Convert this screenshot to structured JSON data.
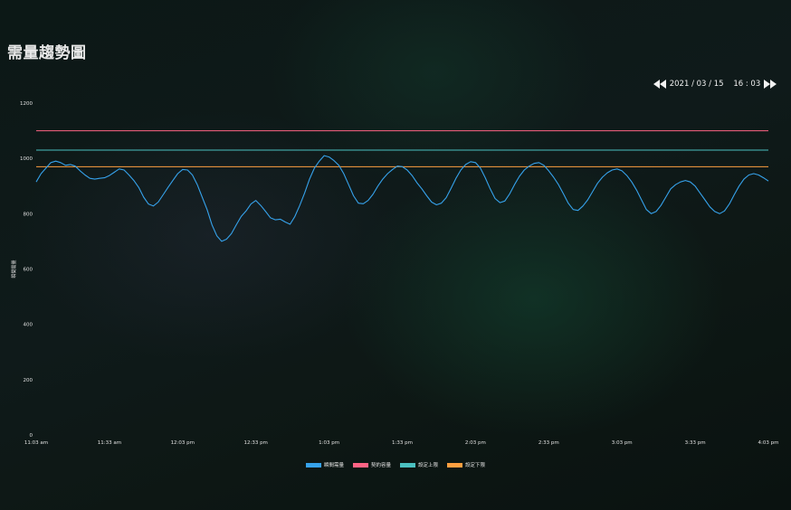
{
  "page": {
    "title": "需量趨勢圖"
  },
  "nav": {
    "date_text": "2021 / 03 / 15    16 : 03",
    "prev_icon": "double-chevron-left-icon",
    "next_icon": "double-chevron-right-icon"
  },
  "chart_data": {
    "type": "line",
    "title": "需量趨勢圖",
    "xlabel": "",
    "ylabel": "瞬間需量",
    "ylim": [
      0,
      1200
    ],
    "yticks": [
      0,
      200,
      400,
      600,
      800,
      1000,
      1200
    ],
    "xlim_minutes": [
      0,
      300
    ],
    "x_tick_labels": [
      "11:03 am",
      "11:33 am",
      "12:03 pm",
      "12:33 pm",
      "1:03 pm",
      "1:33 pm",
      "2:03 pm",
      "2:33 pm",
      "3:03 pm",
      "3:33 pm",
      "4:03 pm"
    ],
    "grid": false,
    "legend_position": "bottom",
    "series": [
      {
        "name": "瞬間需量",
        "color": "#36a2eb",
        "x": [
          0,
          2,
          4,
          6,
          8,
          10,
          12,
          14,
          16,
          18,
          20,
          22,
          24,
          26,
          28,
          30,
          32,
          34,
          36,
          38,
          40,
          42,
          44,
          46,
          48,
          50,
          52,
          54,
          56,
          58,
          60,
          62,
          64,
          66,
          68,
          70,
          72,
          74,
          76,
          78,
          80,
          82,
          84,
          86,
          88,
          90,
          92,
          94,
          96,
          98,
          100,
          102,
          104,
          106,
          108,
          110,
          112,
          114,
          116,
          118,
          120,
          122,
          124,
          126,
          128,
          130,
          132,
          134,
          136,
          138,
          140,
          142,
          144,
          146,
          148,
          150,
          152,
          154,
          156,
          158,
          160,
          162,
          164,
          166,
          168,
          170,
          172,
          174,
          176,
          178,
          180,
          182,
          184,
          186,
          188,
          190,
          192,
          194,
          196,
          198,
          200,
          202,
          204,
          206,
          208,
          210,
          212,
          214,
          216,
          218,
          220,
          222,
          224,
          226,
          228,
          230,
          232,
          234,
          236,
          238,
          240,
          242,
          244,
          246,
          248,
          250,
          252,
          254,
          256,
          258,
          260,
          262,
          264,
          266,
          268,
          270,
          272,
          274,
          276,
          278,
          280,
          282,
          284,
          286,
          288,
          290,
          292,
          294,
          296,
          298,
          300
        ],
        "values": [
          915,
          945,
          965,
          985,
          990,
          985,
          975,
          978,
          972,
          955,
          940,
          928,
          925,
          928,
          930,
          938,
          950,
          962,
          958,
          940,
          920,
          895,
          860,
          835,
          828,
          842,
          868,
          895,
          920,
          945,
          960,
          958,
          940,
          905,
          860,
          815,
          760,
          720,
          700,
          708,
          728,
          760,
          790,
          810,
          835,
          848,
          830,
          808,
          785,
          778,
          780,
          770,
          762,
          790,
          830,
          875,
          925,
          965,
          990,
          1010,
          1005,
          992,
          975,
          945,
          905,
          865,
          838,
          836,
          848,
          870,
          900,
          925,
          945,
          960,
          972,
          970,
          958,
          938,
          912,
          890,
          865,
          842,
          832,
          838,
          858,
          892,
          928,
          958,
          978,
          988,
          985,
          965,
          930,
          890,
          855,
          840,
          846,
          872,
          905,
          935,
          958,
          972,
          982,
          985,
          975,
          955,
          932,
          905,
          872,
          838,
          815,
          812,
          828,
          850,
          880,
          910,
          932,
          948,
          958,
          962,
          955,
          938,
          915,
          885,
          850,
          815,
          800,
          808,
          830,
          860,
          890,
          905,
          915,
          920,
          915,
          900,
          875,
          850,
          825,
          808,
          800,
          810,
          835,
          868,
          900,
          925,
          940,
          945,
          940,
          930,
          918
        ]
      },
      {
        "name": "契約容量",
        "color": "#ff6384",
        "values_constant": 1100
      },
      {
        "name": "設定上限",
        "color": "#4bc0c0",
        "values_constant": 1030
      },
      {
        "name": "設定下限",
        "color": "#ff9f40",
        "values_constant": 970
      }
    ]
  }
}
